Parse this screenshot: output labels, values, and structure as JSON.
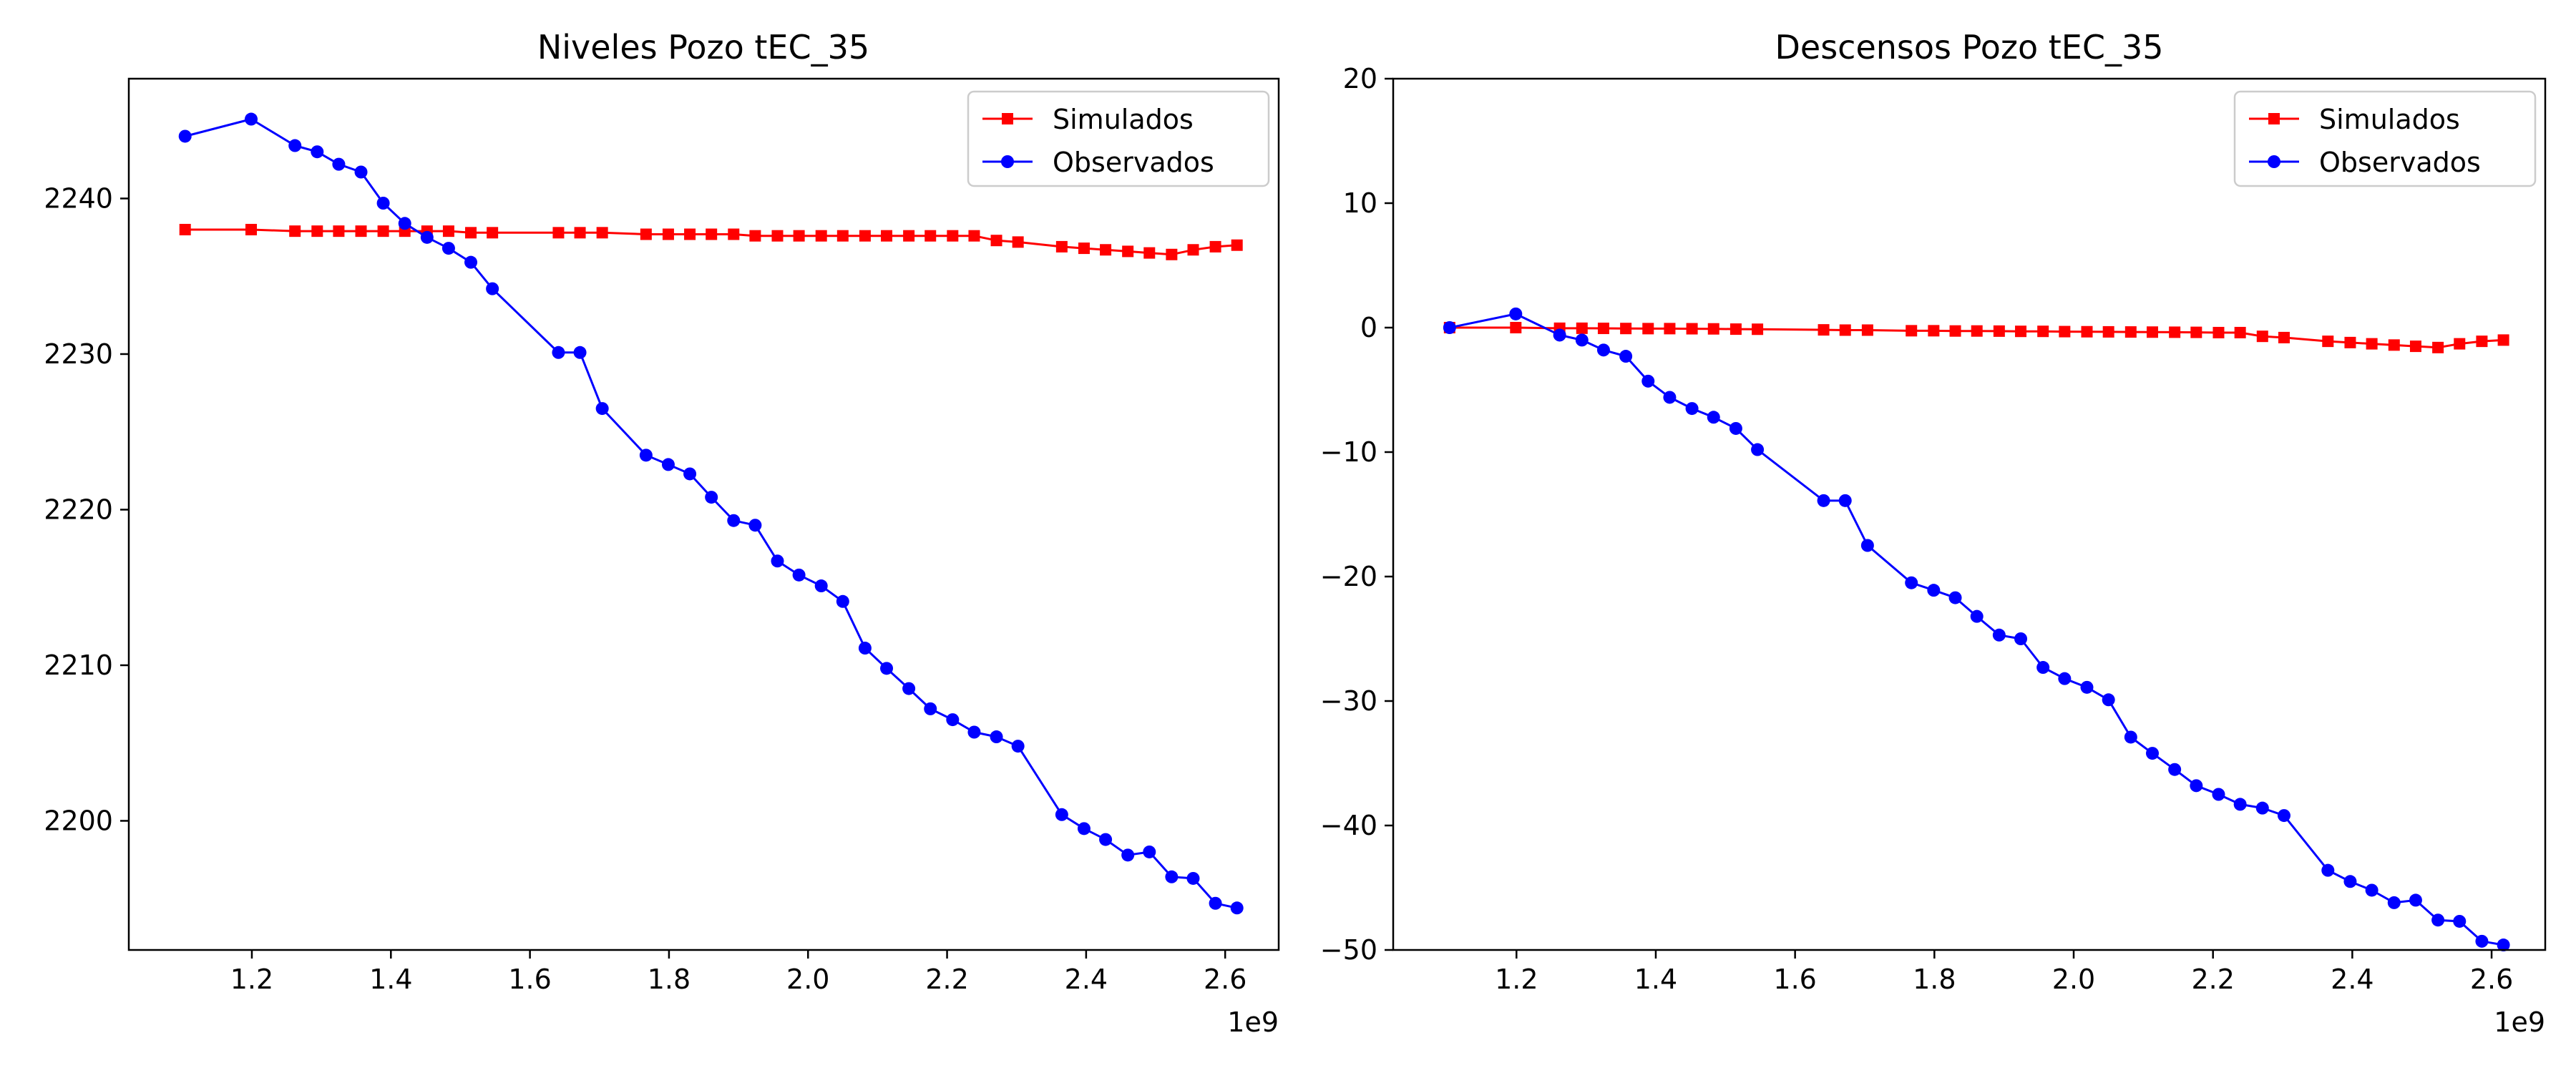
{
  "chart_data": [
    {
      "type": "line",
      "title": "Niveles Pozo tEC_35",
      "xlabel": "",
      "ylabel": "",
      "x_offset_label": "1e9",
      "xlim": [
        1.023,
        2.677
      ],
      "ylim": [
        2191.7,
        2247.7
      ],
      "xticks": [
        1.2,
        1.4,
        1.6,
        1.8,
        2.0,
        2.2,
        2.4,
        2.6
      ],
      "xtick_labels": [
        "1.2",
        "1.4",
        "1.6",
        "1.8",
        "2.0",
        "2.2",
        "2.4",
        "2.6"
      ],
      "yticks": [
        2200,
        2210,
        2220,
        2230,
        2240
      ],
      "ytick_labels": [
        "2200",
        "2210",
        "2220",
        "2230",
        "2240"
      ],
      "grid": false,
      "legend": "top-right",
      "series": [
        {
          "name": "Simulados",
          "color": "#ff0000",
          "marker": "square",
          "x": [
            1.104,
            1.199,
            1.262,
            1.294,
            1.325,
            1.357,
            1.389,
            1.42,
            1.452,
            1.483,
            1.515,
            1.546,
            1.641,
            1.672,
            1.704,
            1.767,
            1.799,
            1.83,
            1.861,
            1.893,
            1.924,
            1.956,
            1.987,
            2.019,
            2.05,
            2.082,
            2.113,
            2.145,
            2.176,
            2.208,
            2.239,
            2.271,
            2.302,
            2.365,
            2.397,
            2.428,
            2.46,
            2.491,
            2.523,
            2.554,
            2.586,
            2.617
          ],
          "y": [
            2238.0,
            2238.0,
            2237.9,
            2237.9,
            2237.9,
            2237.9,
            2237.9,
            2237.9,
            2237.9,
            2237.9,
            2237.8,
            2237.8,
            2237.8,
            2237.8,
            2237.8,
            2237.7,
            2237.7,
            2237.7,
            2237.7,
            2237.7,
            2237.6,
            2237.6,
            2237.6,
            2237.6,
            2237.6,
            2237.6,
            2237.6,
            2237.6,
            2237.6,
            2237.6,
            2237.6,
            2237.3,
            2237.2,
            2236.9,
            2236.8,
            2236.7,
            2236.6,
            2236.5,
            2236.4,
            2236.7,
            2236.9,
            2237.0
          ]
        },
        {
          "name": "Observados",
          "color": "#0000ff",
          "marker": "circle",
          "x": [
            1.104,
            1.199,
            1.262,
            1.294,
            1.325,
            1.357,
            1.389,
            1.42,
            1.452,
            1.483,
            1.515,
            1.546,
            1.641,
            1.672,
            1.704,
            1.767,
            1.799,
            1.83,
            1.861,
            1.893,
            1.924,
            1.956,
            1.987,
            2.019,
            2.05,
            2.082,
            2.113,
            2.145,
            2.176,
            2.208,
            2.239,
            2.271,
            2.302,
            2.365,
            2.397,
            2.428,
            2.46,
            2.491,
            2.523,
            2.554,
            2.586,
            2.617
          ],
          "y": [
            2244.0,
            2245.1,
            2243.4,
            2243.0,
            2242.2,
            2241.7,
            2239.7,
            2238.4,
            2237.5,
            2236.8,
            2235.9,
            2234.2,
            2230.1,
            2230.1,
            2226.5,
            2223.5,
            2222.9,
            2222.3,
            2220.8,
            2219.3,
            2219.0,
            2216.7,
            2215.8,
            2215.1,
            2214.1,
            2211.1,
            2209.8,
            2208.5,
            2207.2,
            2206.5,
            2205.7,
            2205.4,
            2204.8,
            2200.4,
            2199.5,
            2198.8,
            2197.8,
            2198.0,
            2196.4,
            2196.3,
            2194.7,
            2194.4
          ]
        }
      ]
    },
    {
      "type": "line",
      "title": "Descensos Pozo tEC_35",
      "xlabel": "",
      "ylabel": "",
      "x_offset_label": "1e9",
      "xlim": [
        1.023,
        2.677
      ],
      "ylim": [
        -50,
        20
      ],
      "xticks": [
        1.2,
        1.4,
        1.6,
        1.8,
        2.0,
        2.2,
        2.4,
        2.6
      ],
      "xtick_labels": [
        "1.2",
        "1.4",
        "1.6",
        "1.8",
        "2.0",
        "2.2",
        "2.4",
        "2.6"
      ],
      "yticks": [
        -50,
        -40,
        -30,
        -20,
        -10,
        0,
        10,
        20
      ],
      "ytick_labels": [
        "−50",
        "−40",
        "−30",
        "−20",
        "−10",
        "0",
        "10",
        "20"
      ],
      "grid": false,
      "legend": "top-right",
      "series": [
        {
          "name": "Simulados",
          "color": "#ff0000",
          "marker": "square",
          "x": [
            1.104,
            1.199,
            1.262,
            1.294,
            1.325,
            1.357,
            1.389,
            1.42,
            1.452,
            1.483,
            1.515,
            1.546,
            1.641,
            1.672,
            1.704,
            1.767,
            1.799,
            1.83,
            1.861,
            1.893,
            1.924,
            1.956,
            1.987,
            2.019,
            2.05,
            2.082,
            2.113,
            2.145,
            2.176,
            2.208,
            2.239,
            2.271,
            2.302,
            2.365,
            2.397,
            2.428,
            2.46,
            2.491,
            2.523,
            2.554,
            2.586,
            2.617
          ],
          "y": [
            0.0,
            0.0,
            -0.05,
            -0.05,
            -0.06,
            -0.07,
            -0.08,
            -0.08,
            -0.09,
            -0.1,
            -0.12,
            -0.13,
            -0.18,
            -0.2,
            -0.2,
            -0.25,
            -0.25,
            -0.27,
            -0.27,
            -0.28,
            -0.3,
            -0.3,
            -0.32,
            -0.33,
            -0.34,
            -0.35,
            -0.36,
            -0.37,
            -0.38,
            -0.4,
            -0.4,
            -0.7,
            -0.8,
            -1.1,
            -1.2,
            -1.3,
            -1.4,
            -1.5,
            -1.6,
            -1.3,
            -1.1,
            -1.0
          ]
        },
        {
          "name": "Observados",
          "color": "#0000ff",
          "marker": "circle",
          "x": [
            1.104,
            1.199,
            1.262,
            1.294,
            1.325,
            1.357,
            1.389,
            1.42,
            1.452,
            1.483,
            1.515,
            1.546,
            1.641,
            1.672,
            1.704,
            1.767,
            1.799,
            1.83,
            1.861,
            1.893,
            1.924,
            1.956,
            1.987,
            2.019,
            2.05,
            2.082,
            2.113,
            2.145,
            2.176,
            2.208,
            2.239,
            2.271,
            2.302,
            2.365,
            2.397,
            2.428,
            2.46,
            2.491,
            2.523,
            2.554,
            2.586,
            2.617
          ],
          "y": [
            0.0,
            1.1,
            -0.6,
            -1.0,
            -1.8,
            -2.3,
            -4.3,
            -5.6,
            -6.5,
            -7.2,
            -8.1,
            -9.8,
            -13.9,
            -13.9,
            -17.5,
            -20.5,
            -21.1,
            -21.7,
            -23.2,
            -24.7,
            -25.0,
            -27.3,
            -28.2,
            -28.9,
            -29.9,
            -32.9,
            -34.2,
            -35.5,
            -36.8,
            -37.5,
            -38.3,
            -38.6,
            -39.2,
            -43.6,
            -44.5,
            -45.2,
            -46.2,
            -46.0,
            -47.6,
            -47.7,
            -49.3,
            -49.6
          ]
        }
      ]
    }
  ]
}
